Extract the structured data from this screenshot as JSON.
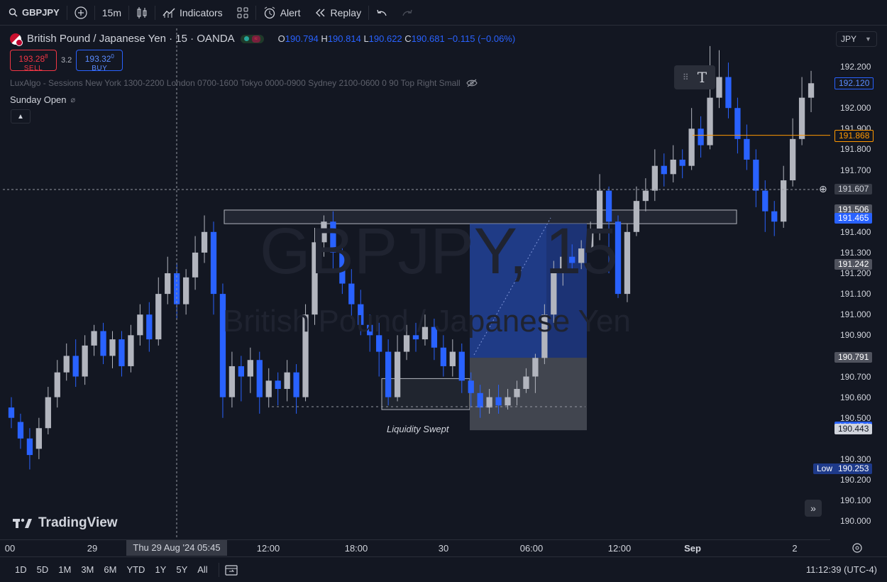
{
  "toolbar": {
    "symbol": "GBPJPY",
    "interval": "15m",
    "indicators": "Indicators",
    "alert": "Alert",
    "replay": "Replay"
  },
  "legend": {
    "title": "British Pound / Japanese Yen · 15 · OANDA",
    "o_label": "O",
    "o": "190.794",
    "h_label": "H",
    "h": "190.814",
    "l_label": "L",
    "l": "190.622",
    "c_label": "C",
    "c": "190.681",
    "change": "−0.115 (−0.06%)"
  },
  "trade": {
    "sell_price": "193.28",
    "sell_sup": "8",
    "sell_label": "SELL",
    "spread": "3.2",
    "buy_price": "193.32",
    "buy_sup": "0",
    "buy_label": "BUY"
  },
  "indicator_line": "LuxAlgo - Sessions New York 1300-2200 London 0700-1600 Tokyo 0000-0900 Sydney 2100-0600 0 90 Top Right Small",
  "sunday_open": "Sunday Open",
  "currency": "JPY",
  "watermark": {
    "symbol": "GBPJPY, 15",
    "name": "British Pound / Japanese Yen"
  },
  "annotation": "Liquidity Swept",
  "brand": "TradingView",
  "price_axis": {
    "ticks": [
      "192.200",
      "192.000",
      "191.900",
      "191.800",
      "191.700",
      "191.400",
      "191.300",
      "191.200",
      "191.100",
      "191.000",
      "190.900",
      "190.700",
      "190.600",
      "190.500",
      "190.300",
      "190.200",
      "190.100",
      "190.000"
    ],
    "tags": [
      {
        "text": "192.120",
        "kind": "blue-outline"
      },
      {
        "text": "191.868",
        "kind": "orange"
      },
      {
        "text": "191.607",
        "kind": "crosshair"
      },
      {
        "text": "191.506",
        "kind": "grey"
      },
      {
        "text": "191.465",
        "kind": "blue"
      },
      {
        "text": "191.242",
        "kind": "grey"
      },
      {
        "text": "190.791",
        "kind": "grey"
      },
      {
        "text": "190.454",
        "kind": "blue"
      },
      {
        "text": "190.443",
        "kind": "light"
      },
      {
        "text": "190.253",
        "kind": "low"
      }
    ],
    "low_label": "Low"
  },
  "time_axis": {
    "labels": [
      "00",
      "29",
      "12:00",
      "18:00",
      "30",
      "06:00",
      "12:00",
      "Sep",
      "2"
    ],
    "crosshair": "Thu 29 Aug '24  05:45"
  },
  "ranges": [
    "1D",
    "5D",
    "1M",
    "3M",
    "6M",
    "YTD",
    "1Y",
    "5Y",
    "All"
  ],
  "clock": "11:12:39 (UTC-4)",
  "colors": {
    "bg": "#131722",
    "up": "#b2b5be",
    "down": "#2962ff",
    "accent": "#2962ff",
    "orange": "#ff9800"
  },
  "chart_data": {
    "type": "candlestick",
    "symbol": "GBPJPY",
    "interval": "15",
    "ylim": [
      189.94,
      192.3
    ],
    "candles": [
      [
        190.55,
        190.5,
        190.6,
        190.45
      ],
      [
        190.48,
        190.4,
        190.52,
        190.35
      ],
      [
        190.4,
        190.32,
        190.45,
        190.25
      ],
      [
        190.35,
        190.45,
        190.5,
        190.3
      ],
      [
        190.45,
        190.6,
        190.65,
        190.42
      ],
      [
        190.6,
        190.72,
        190.78,
        190.55
      ],
      [
        190.72,
        190.8,
        190.86,
        190.68
      ],
      [
        190.8,
        190.7,
        190.88,
        190.65
      ],
      [
        190.7,
        190.85,
        190.9,
        190.66
      ],
      [
        190.85,
        190.92,
        190.95,
        190.8
      ],
      [
        190.92,
        190.8,
        190.96,
        190.76
      ],
      [
        190.8,
        190.88,
        190.92,
        190.74
      ],
      [
        190.88,
        190.75,
        190.92,
        190.7
      ],
      [
        190.75,
        190.9,
        190.95,
        190.72
      ],
      [
        190.9,
        191.0,
        191.05,
        190.85
      ],
      [
        191.0,
        190.88,
        191.06,
        190.82
      ],
      [
        190.88,
        191.1,
        191.18,
        190.85
      ],
      [
        191.1,
        191.2,
        191.28,
        191.05
      ],
      [
        191.2,
        191.05,
        191.25,
        190.98
      ],
      [
        191.05,
        191.18,
        191.22,
        191.0
      ],
      [
        191.18,
        191.3,
        191.38,
        191.12
      ],
      [
        191.3,
        191.4,
        191.48,
        191.25
      ],
      [
        191.4,
        191.1,
        191.45,
        191.0
      ],
      [
        191.1,
        190.6,
        191.15,
        190.5
      ],
      [
        190.6,
        190.75,
        190.82,
        190.55
      ],
      [
        190.75,
        190.7,
        190.8,
        190.58
      ],
      [
        190.7,
        190.78,
        190.84,
        190.62
      ],
      [
        190.78,
        190.6,
        190.82,
        190.52
      ],
      [
        190.6,
        190.68,
        190.74,
        190.55
      ],
      [
        190.68,
        190.64,
        190.72,
        190.56
      ],
      [
        190.64,
        190.72,
        190.78,
        190.58
      ],
      [
        190.72,
        190.6,
        190.76,
        190.52
      ],
      [
        190.6,
        191.0,
        191.05,
        190.58
      ],
      [
        191.0,
        191.35,
        191.42,
        190.95
      ],
      [
        191.35,
        191.45,
        191.48,
        191.28
      ],
      [
        191.45,
        191.3,
        191.5,
        191.22
      ],
      [
        191.3,
        191.15,
        191.35,
        191.1
      ],
      [
        191.15,
        191.05,
        191.22,
        190.98
      ],
      [
        191.05,
        190.95,
        191.12,
        190.9
      ],
      [
        190.95,
        190.9,
        191.0,
        190.82
      ],
      [
        190.9,
        190.82,
        190.96,
        190.7
      ],
      [
        190.82,
        190.6,
        190.88,
        190.56
      ],
      [
        190.6,
        190.82,
        190.9,
        190.58
      ],
      [
        190.82,
        190.9,
        190.95,
        190.78
      ],
      [
        190.9,
        190.88,
        190.96,
        190.82
      ],
      [
        190.88,
        190.94,
        191.0,
        190.85
      ],
      [
        190.94,
        190.84,
        190.98,
        190.78
      ],
      [
        190.84,
        190.75,
        190.9,
        190.7
      ],
      [
        190.75,
        190.82,
        190.88,
        190.7
      ],
      [
        190.82,
        190.68,
        190.86,
        190.62
      ],
      [
        190.68,
        190.62,
        190.72,
        190.55
      ],
      [
        190.62,
        190.55,
        190.66,
        190.5
      ],
      [
        190.55,
        190.6,
        190.64,
        190.52
      ],
      [
        190.6,
        190.56,
        190.66,
        190.52
      ],
      [
        190.56,
        190.6,
        190.64,
        190.54
      ],
      [
        190.6,
        190.64,
        190.68,
        190.56
      ],
      [
        190.64,
        190.7,
        190.74,
        190.62
      ],
      [
        190.7,
        190.79,
        190.81,
        190.62
      ],
      [
        190.79,
        191.0,
        191.05,
        190.76
      ],
      [
        191.0,
        191.2,
        191.26,
        190.96
      ],
      [
        191.2,
        191.28,
        191.32,
        191.14
      ],
      [
        191.28,
        191.25,
        191.34,
        191.2
      ],
      [
        191.25,
        191.32,
        191.36,
        191.22
      ],
      [
        191.32,
        191.4,
        191.45,
        191.3
      ],
      [
        191.4,
        191.6,
        191.68,
        191.36
      ],
      [
        191.6,
        191.45,
        191.62,
        191.2
      ],
      [
        191.45,
        191.1,
        191.48,
        191.08
      ],
      [
        191.1,
        191.4,
        191.44,
        191.06
      ],
      [
        191.4,
        191.55,
        191.62,
        191.38
      ],
      [
        191.55,
        191.6,
        191.66,
        191.5
      ],
      [
        191.6,
        191.72,
        191.8,
        191.55
      ],
      [
        191.72,
        191.68,
        191.78,
        191.62
      ],
      [
        191.68,
        191.75,
        191.82,
        191.64
      ],
      [
        191.75,
        191.72,
        191.8,
        191.66
      ],
      [
        191.72,
        191.9,
        192.0,
        191.7
      ],
      [
        191.9,
        191.82,
        191.96,
        191.76
      ],
      [
        191.82,
        192.05,
        192.3,
        191.8
      ],
      [
        192.05,
        192.15,
        192.28,
        192.0
      ],
      [
        192.15,
        192.0,
        192.22,
        191.95
      ],
      [
        192.0,
        191.85,
        192.05,
        191.78
      ],
      [
        191.85,
        191.75,
        191.92,
        191.7
      ],
      [
        191.75,
        191.6,
        191.8,
        191.52
      ],
      [
        191.6,
        191.5,
        191.65,
        191.4
      ],
      [
        191.5,
        191.45,
        191.55,
        191.38
      ],
      [
        191.45,
        191.65,
        191.72,
        191.42
      ],
      [
        191.65,
        191.85,
        191.95,
        191.62
      ],
      [
        191.85,
        192.05,
        192.15,
        191.82
      ],
      [
        192.05,
        192.12,
        192.18,
        191.98
      ]
    ],
    "zones": [
      {
        "name": "resistance-box",
        "from": 191.506,
        "to": 191.44
      },
      {
        "name": "liquidity-box",
        "from": 190.69,
        "to": 190.54
      },
      {
        "name": "long-profit",
        "from": 191.44,
        "to": 190.791
      },
      {
        "name": "long-stop",
        "from": 190.791,
        "to": 190.44
      }
    ]
  }
}
